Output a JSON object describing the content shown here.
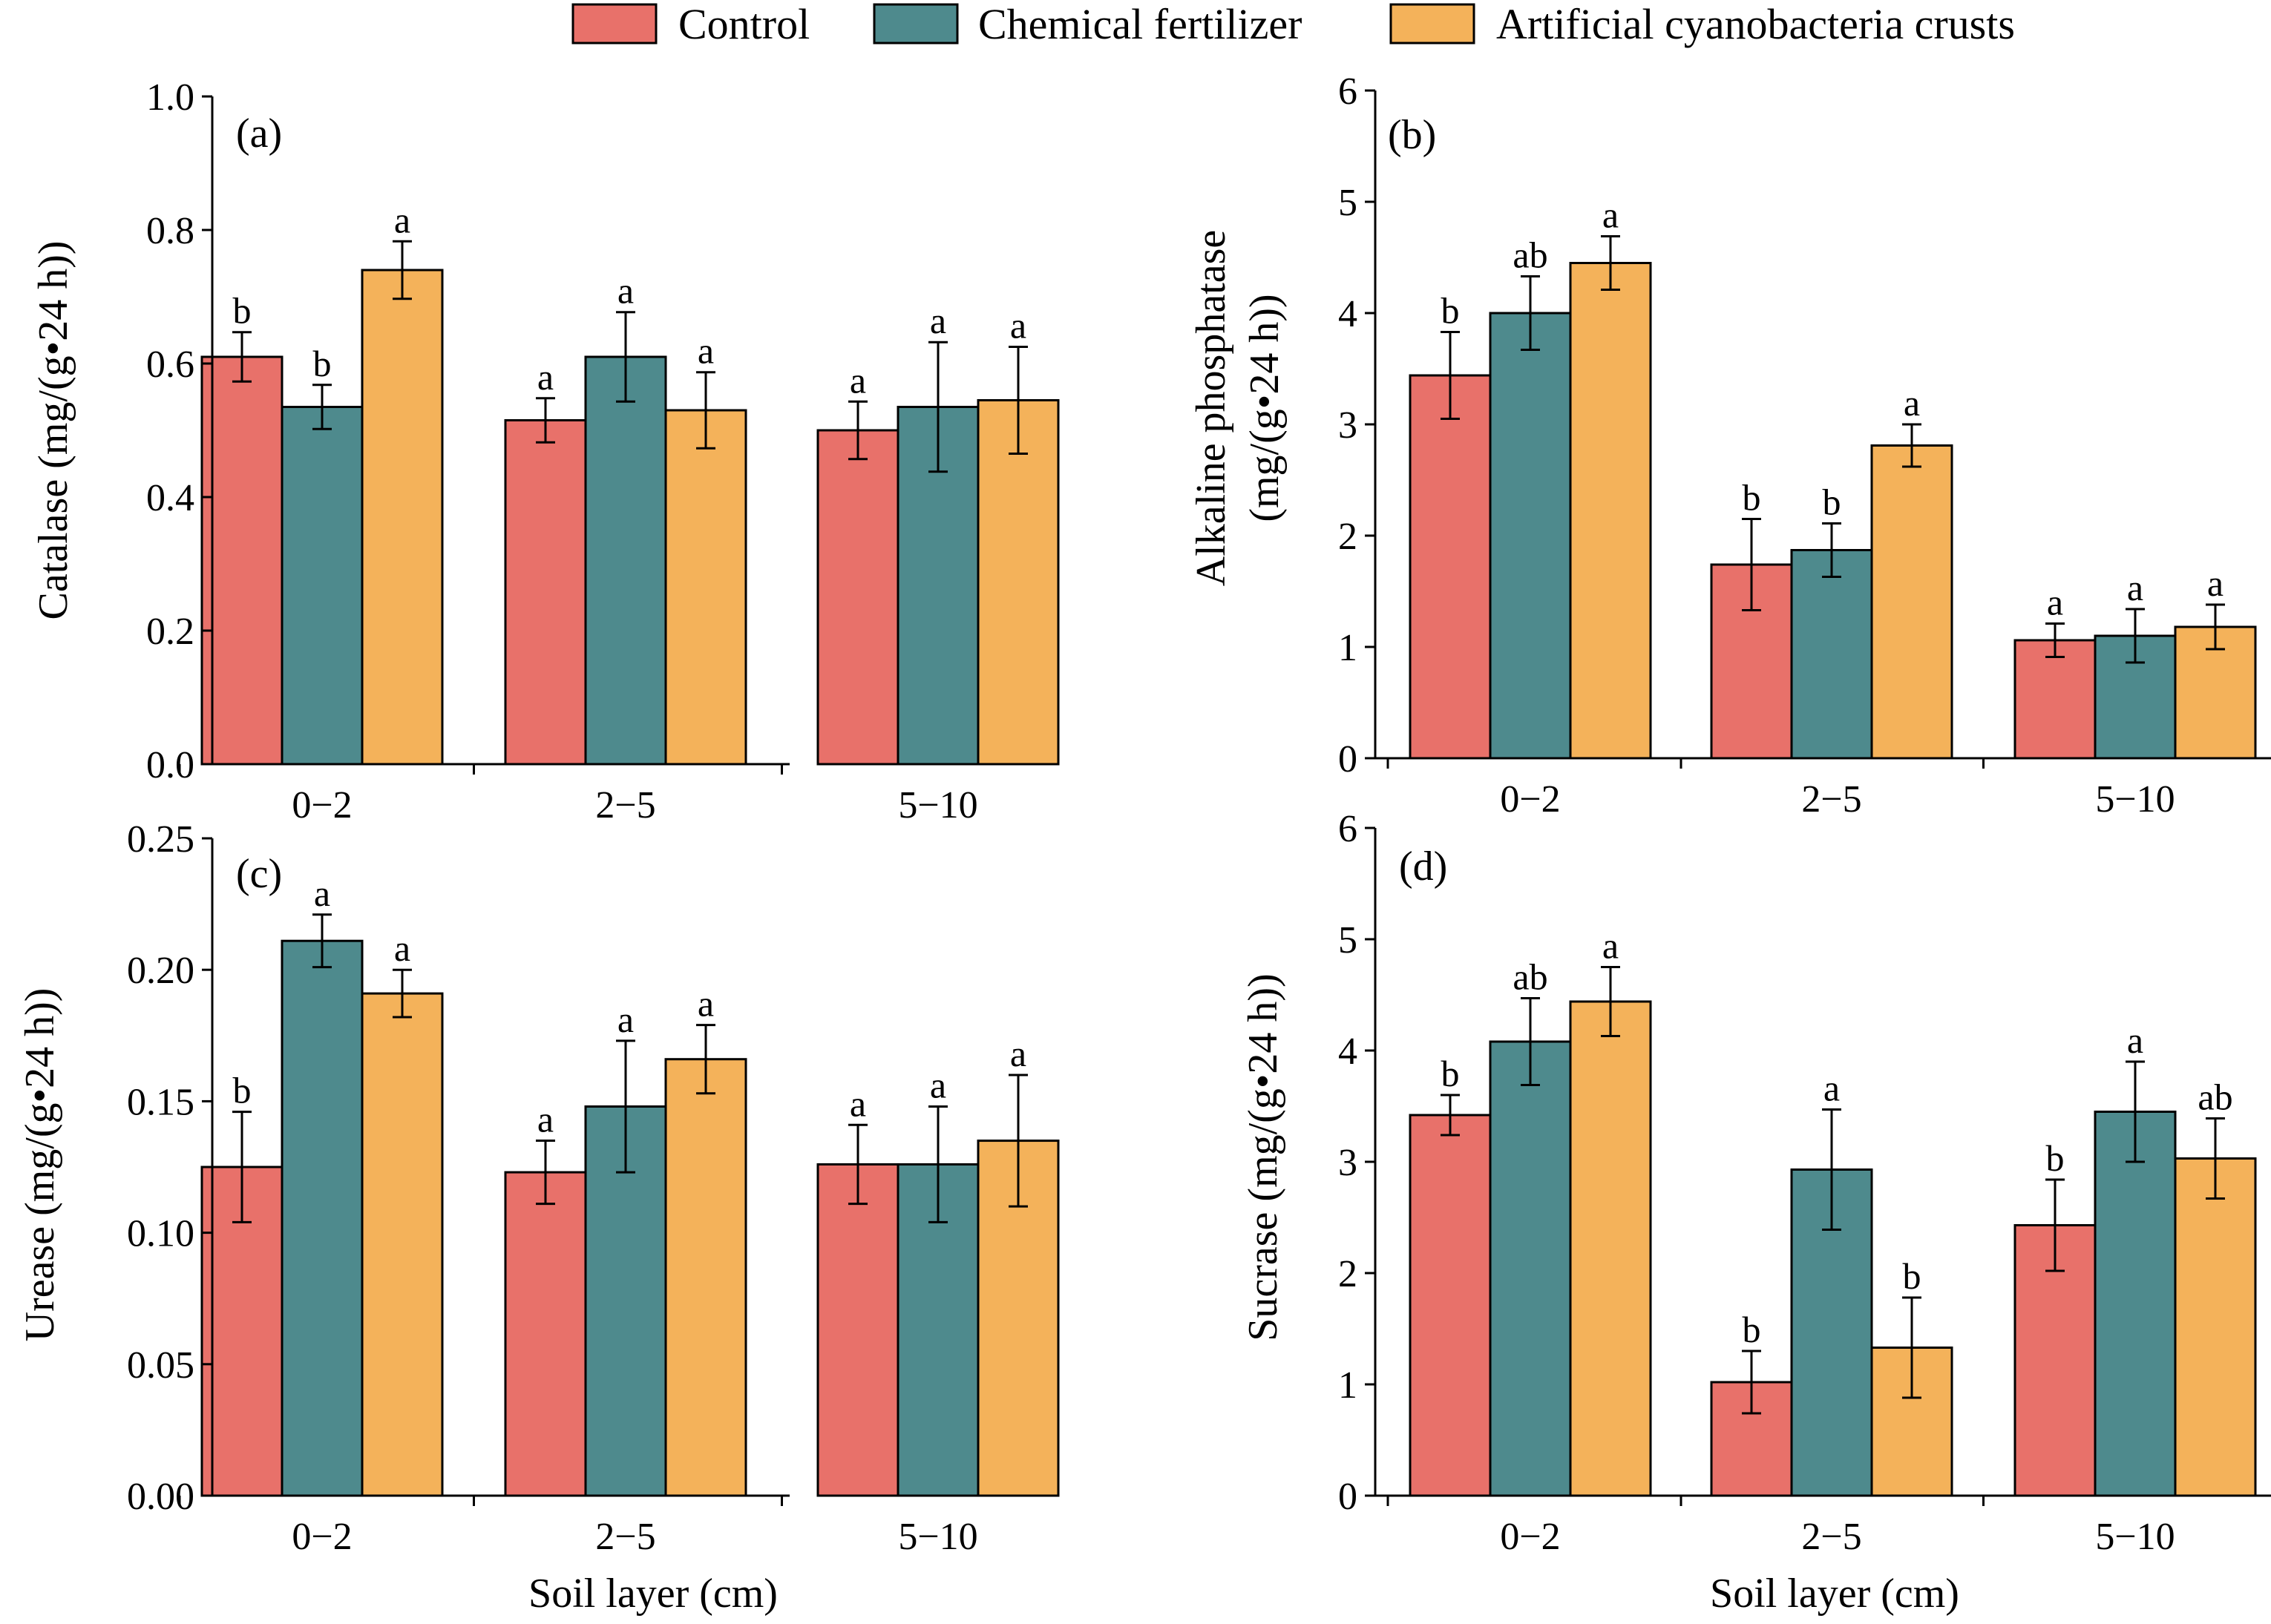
{
  "legend": [
    {
      "name": "Control",
      "color": "#e8716a"
    },
    {
      "name": "Chemical fertilizer",
      "color": "#4e8a8d"
    },
    {
      "name": "Artificial cyanobacteria crusts",
      "color": "#f4b25a"
    }
  ],
  "chart_data": [
    {
      "type": "bar",
      "panel_label": "(a)",
      "categories": [
        "0−2",
        "2−5",
        "5−10"
      ],
      "xlabel": "",
      "ylabel": "Catalase (mg/(g•24 h))",
      "ylim": [
        0,
        1.0
      ],
      "yticks": [
        "0.0",
        "0.2",
        "0.4",
        "0.6",
        "0.8",
        "1.0"
      ],
      "series": [
        {
          "name": "Control",
          "values": [
            0.61,
            0.515,
            0.5
          ],
          "errors": [
            0.037,
            0.033,
            0.043
          ],
          "sig": [
            "b",
            "a",
            "a"
          ]
        },
        {
          "name": "Chemical fertilizer",
          "values": [
            0.535,
            0.61,
            0.535
          ],
          "errors": [
            0.033,
            0.067,
            0.097
          ],
          "sig": [
            "b",
            "a",
            "a"
          ]
        },
        {
          "name": "Artificial cyanobacteria crusts",
          "values": [
            0.74,
            0.53,
            0.545
          ],
          "errors": [
            0.043,
            0.057,
            0.08
          ],
          "sig": [
            "a",
            "a",
            "a"
          ]
        }
      ]
    },
    {
      "type": "bar",
      "panel_label": "(b)",
      "categories": [
        "0−2",
        "2−5",
        "5−10"
      ],
      "xlabel": "",
      "ylabel": "Alkaline phosphatase",
      "ylabel2": "(mg/(g•24 h))",
      "ylim": [
        0,
        6
      ],
      "yticks": [
        "0",
        "1",
        "2",
        "3",
        "4",
        "5",
        "6"
      ],
      "series": [
        {
          "name": "Control",
          "values": [
            3.44,
            1.74,
            1.06
          ],
          "errors": [
            0.39,
            0.41,
            0.15
          ],
          "sig": [
            "b",
            "b",
            "a"
          ]
        },
        {
          "name": "Chemical fertilizer",
          "values": [
            4.0,
            1.87,
            1.1
          ],
          "errors": [
            0.33,
            0.24,
            0.24
          ],
          "sig": [
            "ab",
            "b",
            "a"
          ]
        },
        {
          "name": "Artificial cyanobacteria crusts",
          "values": [
            4.45,
            2.81,
            1.18
          ],
          "errors": [
            0.24,
            0.19,
            0.2
          ],
          "sig": [
            "a",
            "a",
            "a"
          ]
        }
      ]
    },
    {
      "type": "bar",
      "panel_label": "(c)",
      "categories": [
        "0−2",
        "2−5",
        "5−10"
      ],
      "xlabel": "Soil layer (cm)",
      "ylabel": "Urease (mg/(g•24 h))",
      "ylim": [
        0,
        0.25
      ],
      "yticks": [
        "0.00",
        "0.05",
        "0.10",
        "0.15",
        "0.20",
        "0.25"
      ],
      "series": [
        {
          "name": "Control",
          "values": [
            0.125,
            0.123,
            0.126
          ],
          "errors": [
            0.021,
            0.012,
            0.015
          ],
          "sig": [
            "b",
            "a",
            "a"
          ]
        },
        {
          "name": "Chemical fertilizer",
          "values": [
            0.211,
            0.148,
            0.126
          ],
          "errors": [
            0.01,
            0.025,
            0.022
          ],
          "sig": [
            "a",
            "a",
            "a"
          ]
        },
        {
          "name": "Artificial cyanobacteria crusts",
          "values": [
            0.191,
            0.166,
            0.135
          ],
          "errors": [
            0.009,
            0.013,
            0.025
          ],
          "sig": [
            "a",
            "a",
            "a"
          ]
        }
      ]
    },
    {
      "type": "bar",
      "panel_label": "(d)",
      "categories": [
        "0−2",
        "2−5",
        "5−10"
      ],
      "xlabel": "Soil layer (cm)",
      "ylabel": "Sucrase (mg/(g•24 h))",
      "ylim": [
        0,
        6
      ],
      "yticks": [
        "0",
        "1",
        "2",
        "3",
        "4",
        "5",
        "6"
      ],
      "series": [
        {
          "name": "Control",
          "values": [
            3.42,
            1.02,
            2.43
          ],
          "errors": [
            0.18,
            0.28,
            0.41
          ],
          "sig": [
            "b",
            "b",
            "b"
          ]
        },
        {
          "name": "Chemical fertilizer",
          "values": [
            4.08,
            2.93,
            3.45
          ],
          "errors": [
            0.39,
            0.54,
            0.45
          ],
          "sig": [
            "ab",
            "a",
            "a"
          ]
        },
        {
          "name": "Artificial cyanobacteria crusts",
          "values": [
            4.44,
            1.33,
            3.03
          ],
          "errors": [
            0.31,
            0.45,
            0.36
          ],
          "sig": [
            "a",
            "b",
            "ab"
          ]
        }
      ]
    }
  ]
}
